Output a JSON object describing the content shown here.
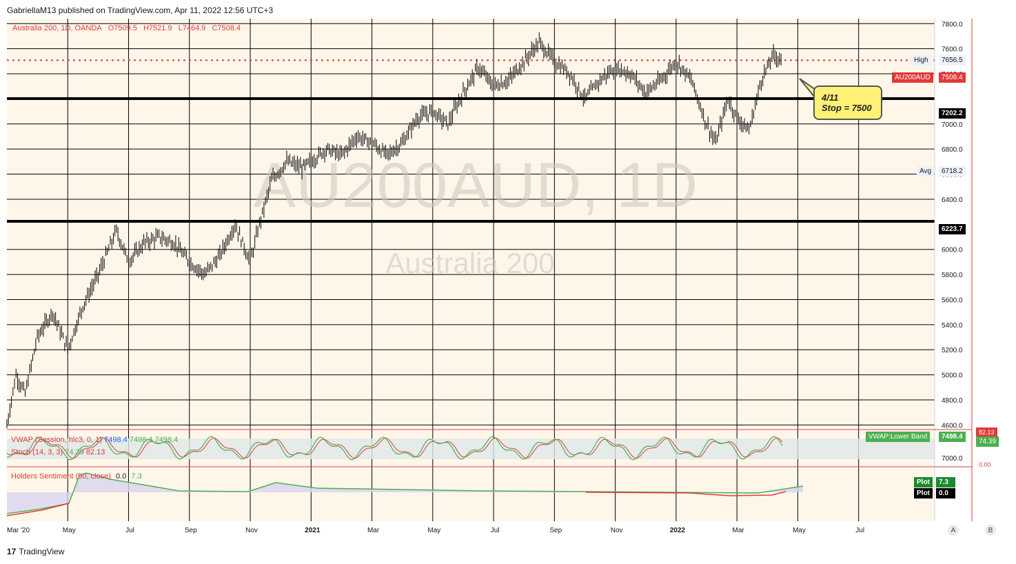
{
  "header": {
    "published_line": "GabriellaM13 published on TradingView.com, Apr 11, 2022 12:56 UTC+3"
  },
  "footer": {
    "brand": "TradingView",
    "brand_mark": "17"
  },
  "legend": {
    "symbol": "Australia 200, 1D, OANDA",
    "open": "O7509.5",
    "high": "H7521.9",
    "low": "L7464.9",
    "close": "C7508.4"
  },
  "watermark": {
    "ticker": "AU200AUD, 1D",
    "name": "Australia 200"
  },
  "price_tags": {
    "high_label": "High",
    "high_value": "7656.5",
    "last_symbol": "AU200AUD",
    "last_value": "7508.4",
    "support_upper": "7202.2",
    "avg_label": "Avg",
    "avg_value": "6718.2",
    "support_lower": "6223.7"
  },
  "callout": {
    "line1": "4/11",
    "line2": "Stop = 7500"
  },
  "indicators": {
    "vwap": {
      "label": "VWAP (Session, hlc3, 0, 1)",
      "v1": "7498.4",
      "v2": "7498.4",
      "v3": "7498.4",
      "band_label": "VWAP:Lower Band",
      "band_value": "7498.4"
    },
    "stoch": {
      "label": "Stoch (14, 3, 3)",
      "k": "74.39",
      "d": "82.13",
      "axis_top": "82.13",
      "axis_value": "74.39",
      "axis_bottom": "0.00",
      "axis_left": "7000.0"
    },
    "holders": {
      "label": "Holders Sentiment (50, close)",
      "v1": "0.0",
      "v2": "7.3",
      "plot_label": "Plot",
      "plot_a": "7.3",
      "plot_b": "0.0"
    }
  },
  "axis_buttons": {
    "a": "A",
    "b": "B"
  },
  "chart_data": {
    "type": "candlestick",
    "y_ticks": [
      "7800.0",
      "7600.0",
      "7400.0",
      "7000.0",
      "6800.0",
      "6600.0",
      "6400.0",
      "6000.0",
      "5800.0",
      "5600.0",
      "5400.0",
      "5200.0",
      "5000.0",
      "4800.0",
      "4600.0"
    ],
    "y_tick_values": [
      7800,
      7600,
      7400,
      7000,
      6800,
      6600,
      6400,
      6000,
      5800,
      5600,
      5400,
      5200,
      5000,
      4800,
      4600
    ],
    "ylim": [
      4580,
      7840
    ],
    "x_ticks": [
      "Mar '20",
      "May",
      "Jul",
      "Sep",
      "Nov",
      "2021",
      "Mar",
      "May",
      "Jul",
      "Sep",
      "Nov",
      "2022",
      "Mar",
      "May",
      "Jul"
    ],
    "x_tick_months": [
      0,
      2,
      4,
      6,
      8,
      10,
      12,
      14,
      16,
      18,
      20,
      22,
      24,
      26,
      28
    ],
    "xlim_months": [
      0,
      30.5
    ],
    "horizontal_levels": [
      7202.2,
      6223.7
    ],
    "close_level": 7508.4,
    "price_path": [
      [
        0,
        4600
      ],
      [
        0.3,
        5000
      ],
      [
        0.6,
        4850
      ],
      [
        1,
        5300
      ],
      [
        1.5,
        5500
      ],
      [
        2,
        5200
      ],
      [
        2.5,
        5550
      ],
      [
        3,
        5800
      ],
      [
        3.6,
        6150
      ],
      [
        4,
        5900
      ],
      [
        4.5,
        6050
      ],
      [
        5,
        6100
      ],
      [
        5.5,
        6050
      ],
      [
        6,
        5900
      ],
      [
        6.5,
        5800
      ],
      [
        7,
        5950
      ],
      [
        7.5,
        6200
      ],
      [
        8,
        5900
      ],
      [
        8.3,
        6200
      ],
      [
        8.7,
        6550
      ],
      [
        9.2,
        6700
      ],
      [
        9.7,
        6650
      ],
      [
        10,
        6700
      ],
      [
        10.5,
        6800
      ],
      [
        11,
        6750
      ],
      [
        11.5,
        6900
      ],
      [
        12,
        6850
      ],
      [
        12.5,
        6750
      ],
      [
        13,
        6850
      ],
      [
        13.5,
        7050
      ],
      [
        14,
        7100
      ],
      [
        14.5,
        7000
      ],
      [
        15,
        7250
      ],
      [
        15.5,
        7450
      ],
      [
        16,
        7300
      ],
      [
        16.5,
        7350
      ],
      [
        17,
        7500
      ],
      [
        17.5,
        7650
      ],
      [
        18,
        7500
      ],
      [
        18.5,
        7400
      ],
      [
        19,
        7200
      ],
      [
        19.5,
        7350
      ],
      [
        20,
        7450
      ],
      [
        20.5,
        7400
      ],
      [
        21,
        7250
      ],
      [
        21.5,
        7350
      ],
      [
        22,
        7500
      ],
      [
        22.5,
        7350
      ],
      [
        23,
        7000
      ],
      [
        23.3,
        6850
      ],
      [
        23.7,
        7200
      ],
      [
        24,
        7050
      ],
      [
        24.4,
        6950
      ],
      [
        24.8,
        7350
      ],
      [
        25.2,
        7550
      ],
      [
        25.5,
        7508
      ]
    ]
  }
}
